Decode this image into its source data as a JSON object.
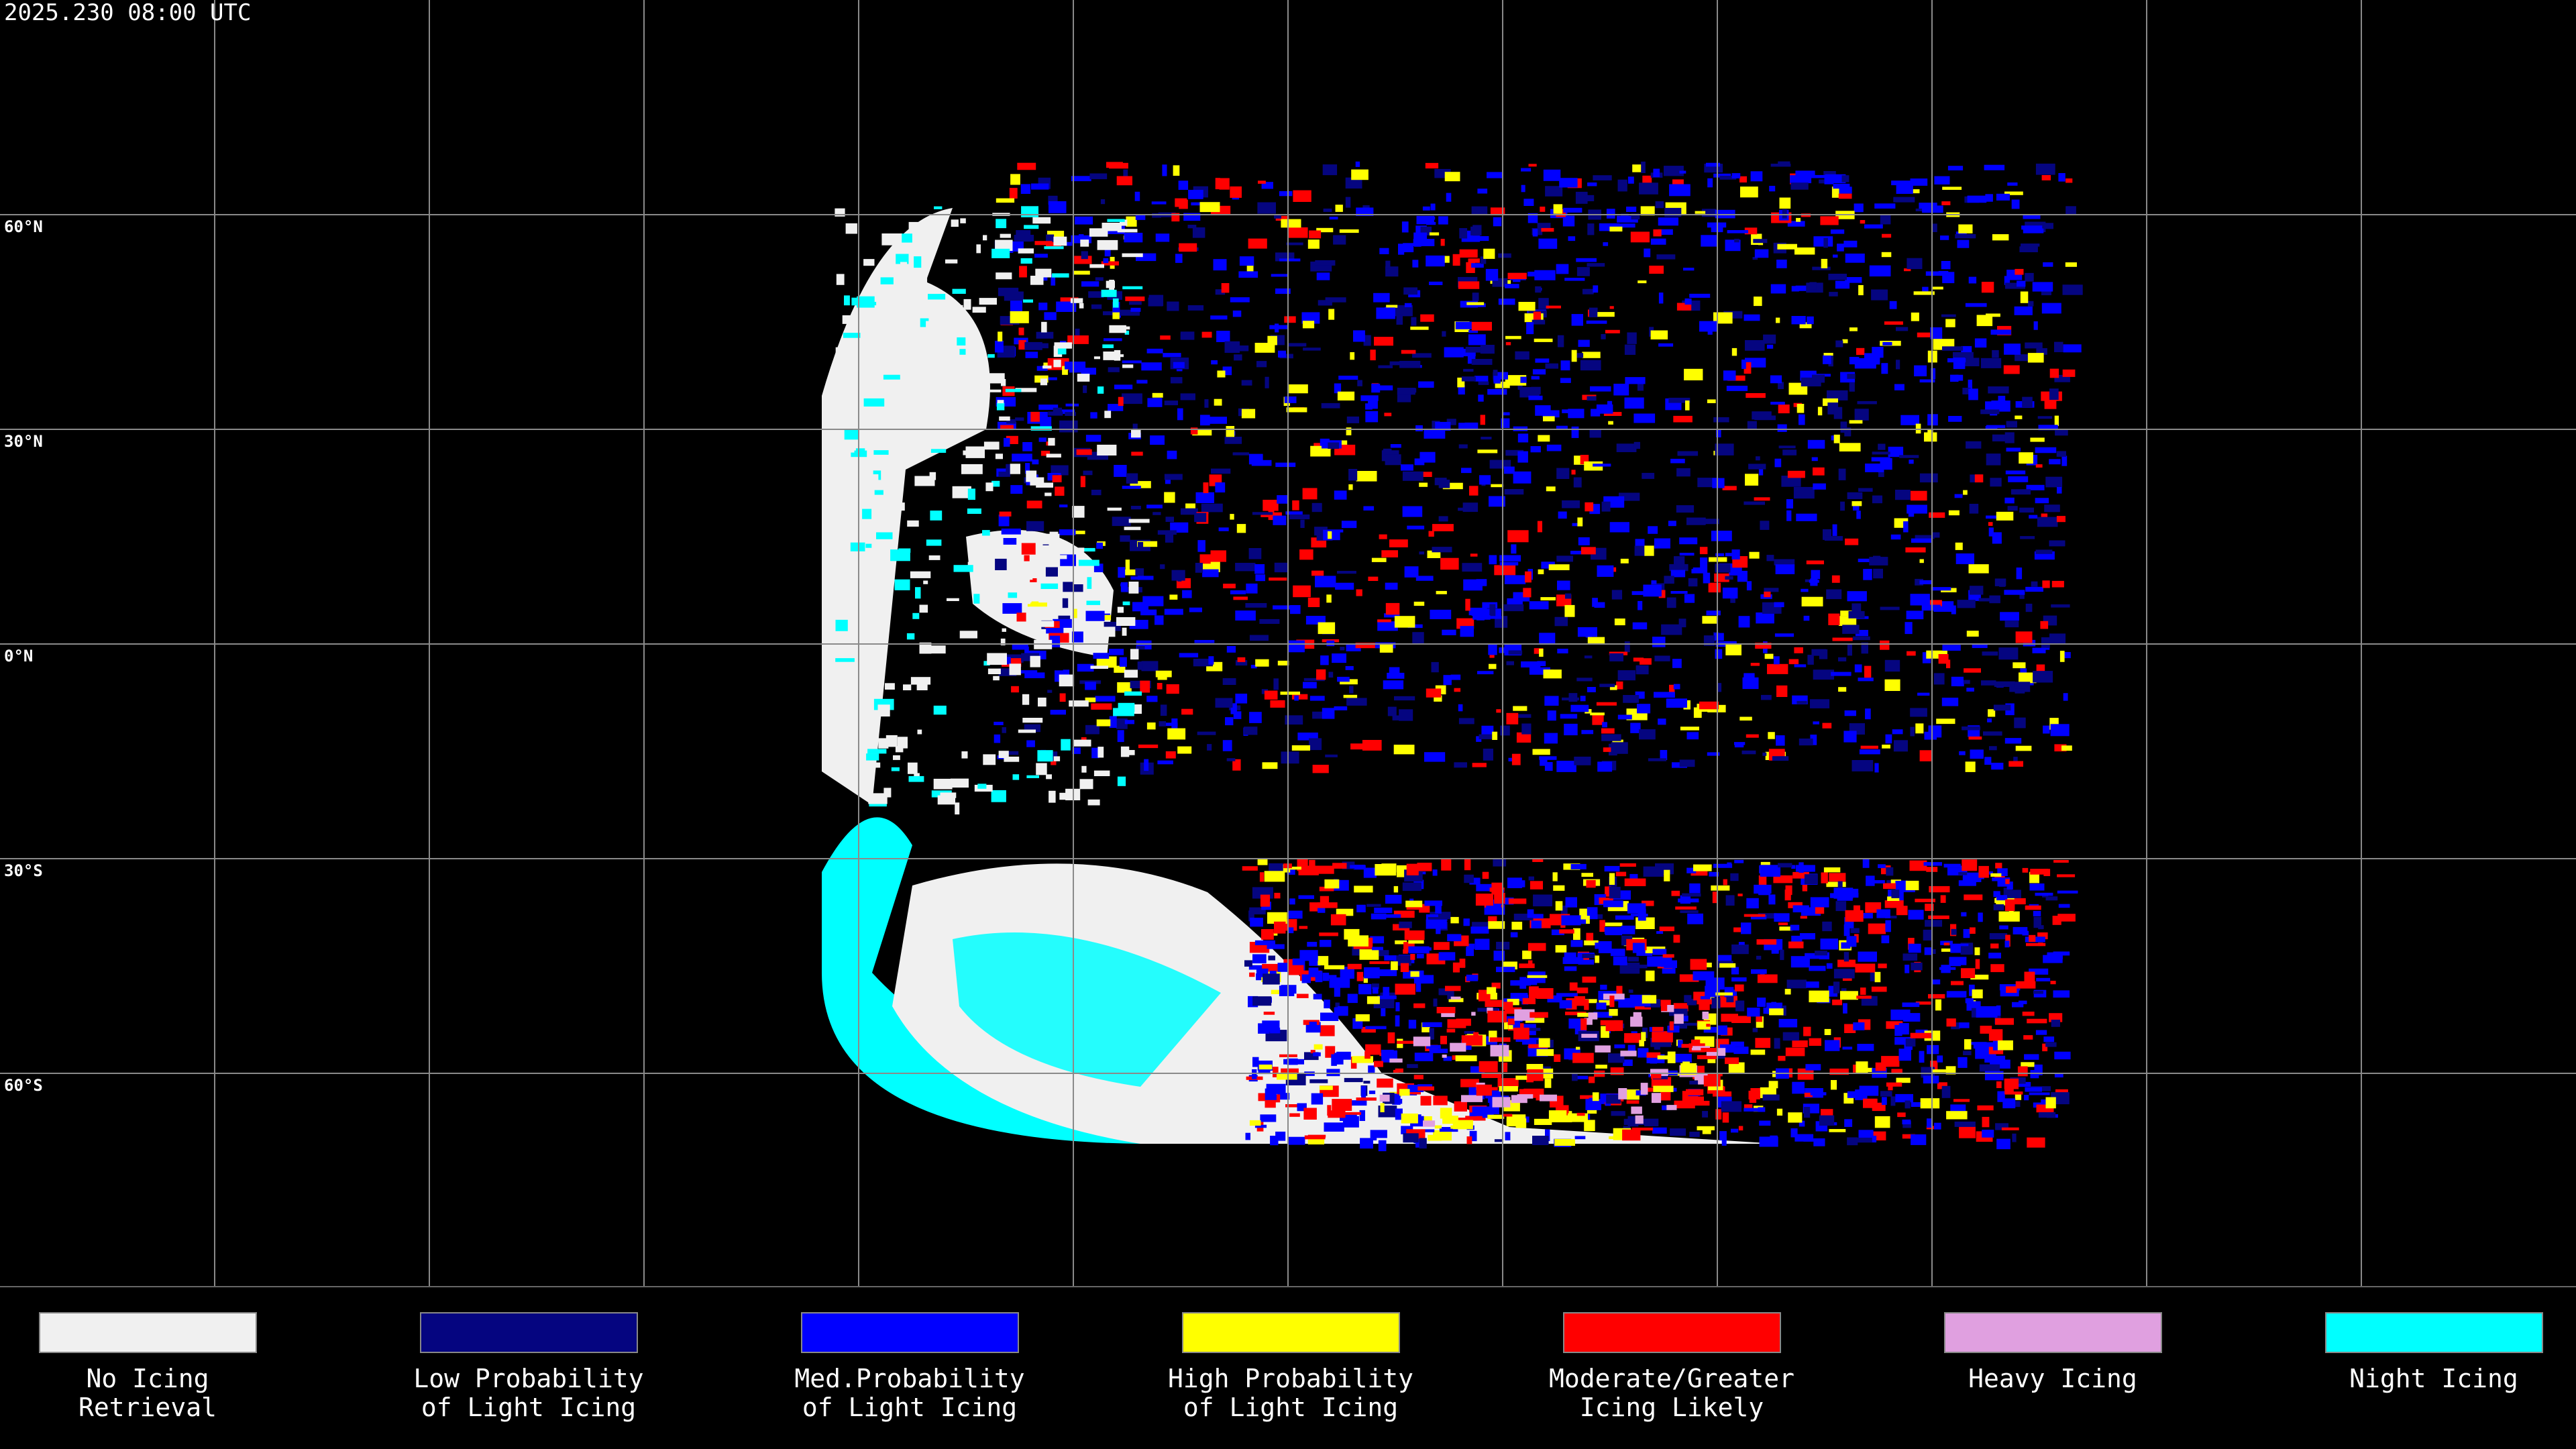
{
  "header": {
    "timestamp": "2025.230 08:00 UTC"
  },
  "map": {
    "lat_labels": [
      "60°N",
      "30°N",
      "0°N",
      "30°S",
      "60°S"
    ]
  },
  "legend": [
    {
      "label": [
        "No Icing",
        "Retrieval"
      ],
      "color": "#f0f0f0"
    },
    {
      "label": [
        "Low Probability",
        "of Light Icing"
      ],
      "color": "#050580"
    },
    {
      "label": [
        "Med.Probability",
        "of Light Icing"
      ],
      "color": "#0000ff"
    },
    {
      "label": [
        "High Probability",
        "of Light Icing"
      ],
      "color": "#ffff00"
    },
    {
      "label": [
        "Moderate/Greater",
        "Icing Likely"
      ],
      "color": "#ff0000"
    },
    {
      "label": [
        "Heavy Icing"
      ],
      "color": "#e0a0e0"
    },
    {
      "label": [
        "Night Icing"
      ],
      "color": "#00ffff"
    }
  ]
}
